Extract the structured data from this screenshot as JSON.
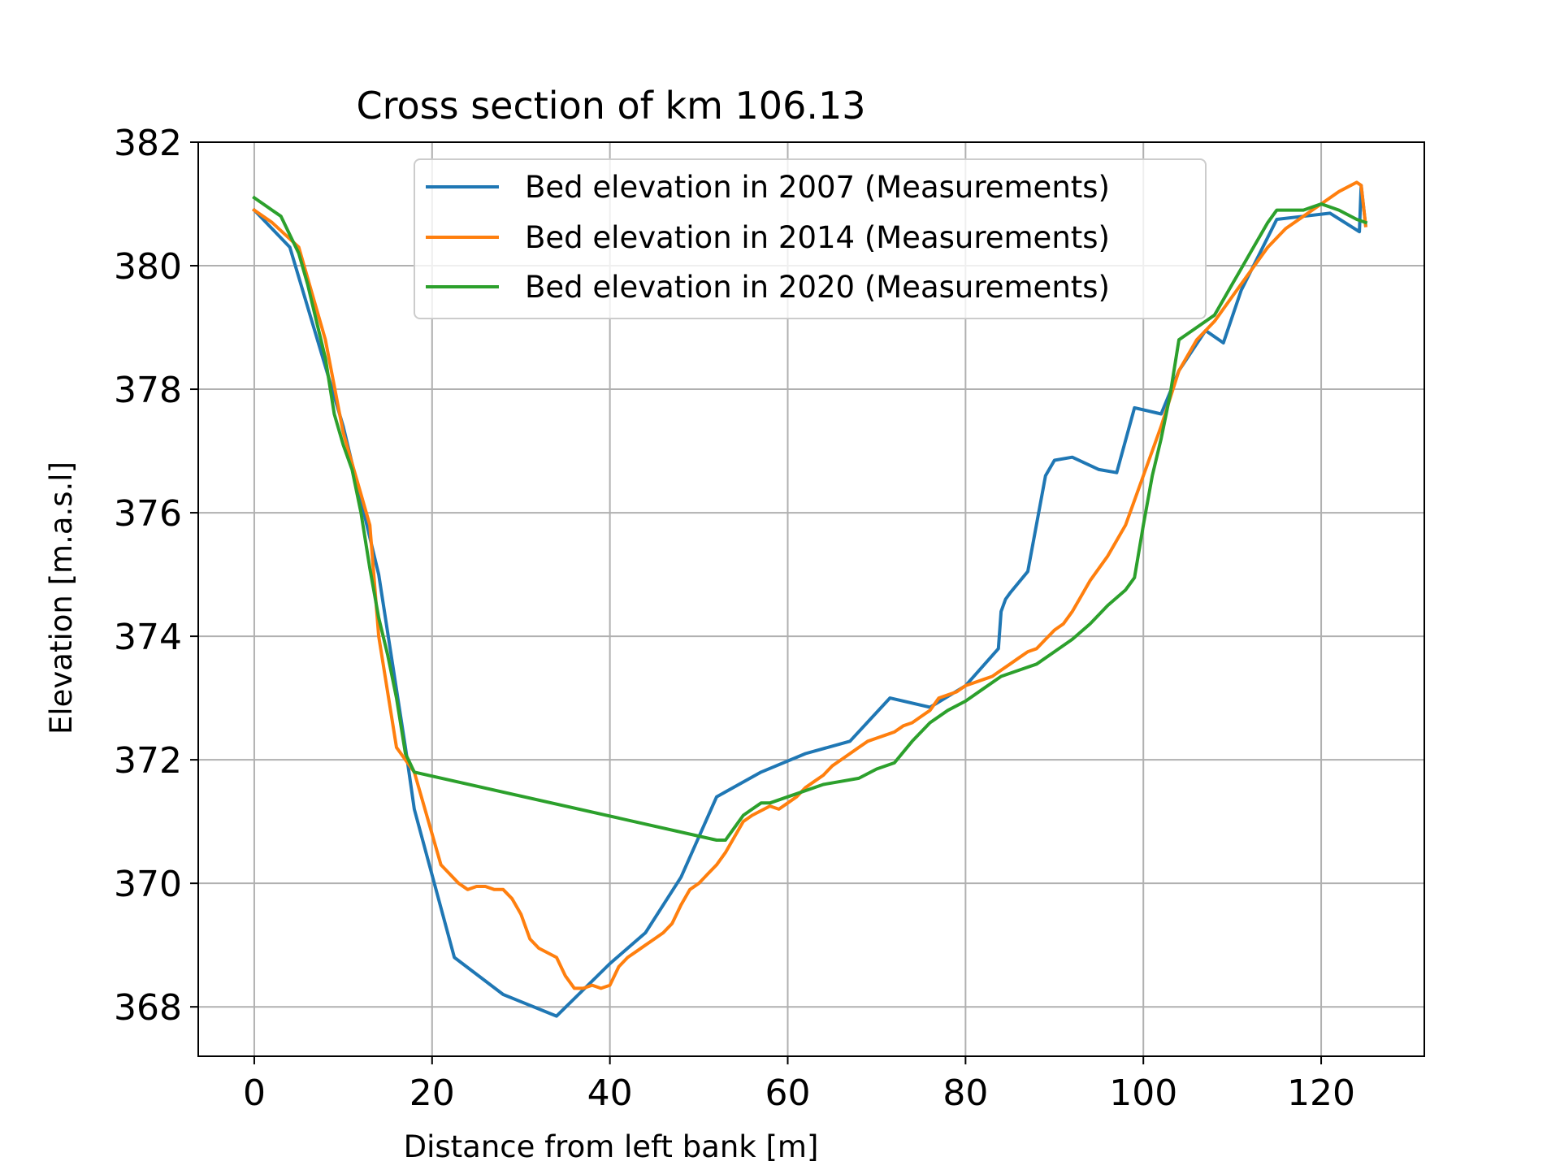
{
  "chart_data": {
    "type": "line",
    "title": "Cross section of km 106.13",
    "xlabel": "Distance from left bank [m]",
    "ylabel": "Elevation [m.a.s.l]",
    "xlim": [
      -6.3,
      131.6
    ],
    "ylim": [
      367.2,
      382
    ],
    "xticks": [
      0,
      20,
      40,
      60,
      80,
      100,
      120
    ],
    "yticks": [
      368,
      370,
      372,
      374,
      376,
      378,
      380,
      382
    ],
    "grid": true,
    "legend_position": "top-center",
    "series": [
      {
        "name": "Bed elevation in 2007 (Measurements)",
        "color": "#1f77b4",
        "x": [
          0,
          4,
          10,
          14,
          17,
          18,
          22.5,
          28,
          34,
          40,
          44,
          48,
          52,
          57,
          62,
          67,
          71.5,
          76,
          80,
          83.7,
          84,
          84.5,
          85,
          87,
          89,
          90,
          92,
          95,
          97,
          99,
          102,
          104,
          107,
          109,
          111,
          115,
          118,
          121,
          124.3,
          124.5,
          125
        ],
        "y": [
          380.9,
          380.3,
          377.4,
          375.0,
          372.2,
          371.2,
          368.8,
          368.2,
          367.85,
          368.7,
          369.2,
          370.1,
          371.4,
          371.8,
          372.1,
          372.3,
          373.0,
          372.85,
          373.2,
          373.8,
          374.4,
          374.6,
          374.7,
          375.05,
          376.6,
          376.85,
          376.9,
          376.7,
          376.65,
          377.7,
          377.6,
          378.3,
          378.95,
          378.75,
          379.6,
          380.75,
          380.8,
          380.85,
          380.55,
          381.3,
          380.65
        ]
      },
      {
        "name": "Bed elevation in 2014 (Measurements)",
        "color": "#ff7f0e",
        "x": [
          0,
          2,
          5,
          8,
          10,
          12,
          13,
          14,
          16,
          18,
          20,
          21,
          23,
          24,
          25,
          26,
          27,
          28,
          29,
          30,
          31,
          32,
          34,
          35,
          36,
          37,
          38,
          39,
          40,
          41,
          42,
          43,
          44,
          45,
          46,
          47,
          48,
          49,
          50,
          51,
          52,
          53,
          54,
          55,
          56,
          58,
          59,
          60,
          61,
          62,
          63,
          64,
          65,
          66,
          67,
          68,
          69,
          70,
          71,
          72,
          73,
          74,
          75,
          76,
          77,
          78,
          79,
          80,
          81,
          82,
          83,
          84,
          85,
          86,
          87,
          88,
          89,
          90,
          91,
          92,
          94,
          96,
          98,
          100,
          102,
          104,
          106,
          108,
          110,
          112,
          114,
          116,
          118,
          120,
          122,
          124,
          124.5,
          125
        ],
        "y": [
          380.9,
          380.7,
          380.3,
          378.8,
          377.3,
          376.3,
          375.8,
          374.0,
          372.2,
          371.8,
          370.8,
          370.3,
          370.0,
          369.9,
          369.95,
          369.95,
          369.9,
          369.9,
          369.75,
          369.5,
          369.1,
          368.95,
          368.8,
          368.5,
          368.3,
          368.3,
          368.35,
          368.3,
          368.35,
          368.65,
          368.8,
          368.9,
          369.0,
          369.1,
          369.2,
          369.35,
          369.65,
          369.9,
          370.0,
          370.15,
          370.3,
          370.5,
          370.75,
          371.0,
          371.1,
          371.25,
          371.2,
          371.3,
          371.4,
          371.55,
          371.65,
          371.75,
          371.9,
          372.0,
          372.1,
          372.2,
          372.3,
          372.35,
          372.4,
          372.45,
          372.55,
          372.6,
          372.7,
          372.8,
          373.0,
          373.05,
          373.1,
          373.2,
          373.25,
          373.3,
          373.35,
          373.45,
          373.55,
          373.65,
          373.75,
          373.8,
          373.95,
          374.1,
          374.2,
          374.4,
          374.9,
          375.3,
          375.8,
          376.6,
          377.4,
          378.3,
          378.8,
          379.1,
          379.5,
          379.9,
          380.3,
          380.6,
          380.8,
          381.0,
          381.2,
          381.35,
          381.3,
          380.65
        ]
      },
      {
        "name": "Bed elevation in 2020 (Measurements)",
        "color": "#2ca02c",
        "x": [
          0,
          1,
          2,
          3,
          4,
          5,
          6,
          7,
          8,
          9,
          10,
          11,
          12,
          13,
          14,
          15,
          16,
          17,
          18,
          52,
          53,
          54,
          55,
          56,
          57,
          58,
          60,
          62,
          64,
          66,
          68,
          70,
          72,
          74,
          76,
          78,
          80,
          82,
          84,
          86,
          88,
          90,
          92,
          94,
          96,
          98,
          99,
          100,
          101,
          102,
          103,
          104,
          105,
          106,
          108,
          110,
          112,
          114,
          115,
          118,
          120,
          122,
          124,
          125
        ],
        "y": [
          381.1,
          381.0,
          380.9,
          380.8,
          380.5,
          380.2,
          379.7,
          379.1,
          378.5,
          377.6,
          377.1,
          376.7,
          376.0,
          375.1,
          374.3,
          373.7,
          373.0,
          372.1,
          371.8,
          370.7,
          370.7,
          370.9,
          371.1,
          371.2,
          371.3,
          371.3,
          371.4,
          371.5,
          371.6,
          371.65,
          371.7,
          371.85,
          371.95,
          372.3,
          372.6,
          372.8,
          372.95,
          373.15,
          373.35,
          373.45,
          373.55,
          373.75,
          373.95,
          374.2,
          374.5,
          374.75,
          374.95,
          375.8,
          376.6,
          377.2,
          377.9,
          378.8,
          378.9,
          379.0,
          379.2,
          379.7,
          380.2,
          380.7,
          380.9,
          380.9,
          381.0,
          380.9,
          380.75,
          380.7
        ]
      }
    ]
  }
}
